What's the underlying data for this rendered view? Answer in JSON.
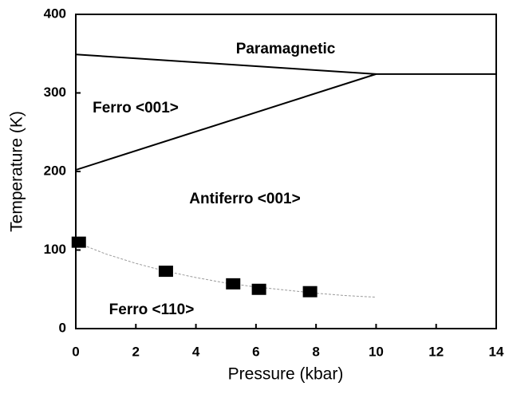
{
  "chart_data": {
    "type": "line",
    "xlabel": "Pressure (kbar)",
    "ylabel": "Temperature (K)",
    "xlim": [
      0,
      14
    ],
    "ylim": [
      0,
      400
    ],
    "xticks": [
      0,
      2,
      4,
      6,
      8,
      10,
      12,
      14
    ],
    "yticks": [
      0,
      100,
      200,
      300,
      400
    ],
    "series": [
      {
        "x": [
          0,
          10,
          14
        ],
        "values": [
          349,
          324,
          324
        ],
        "color": "#000000",
        "mode": "line"
      },
      {
        "x": [
          0,
          10
        ],
        "values": [
          202,
          324
        ],
        "color": "#000000",
        "mode": "line"
      },
      {
        "x": [
          0,
          1,
          2,
          3,
          4,
          5,
          6,
          7,
          8,
          9,
          10
        ],
        "values": [
          110,
          95,
          83,
          73,
          65,
          58,
          53,
          49,
          45,
          42,
          40
        ],
        "color": "#999999",
        "mode": "dashed"
      },
      {
        "x": [
          0.1,
          3.0,
          5.24,
          6.1,
          7.8
        ],
        "values": [
          110,
          73,
          57,
          50,
          47
        ],
        "color": "#000000",
        "mode": "markers"
      }
    ],
    "annotations": [
      "Paramagnetic",
      "Ferro <001>",
      "Antiferro <001>",
      "Ferro <110>"
    ]
  }
}
